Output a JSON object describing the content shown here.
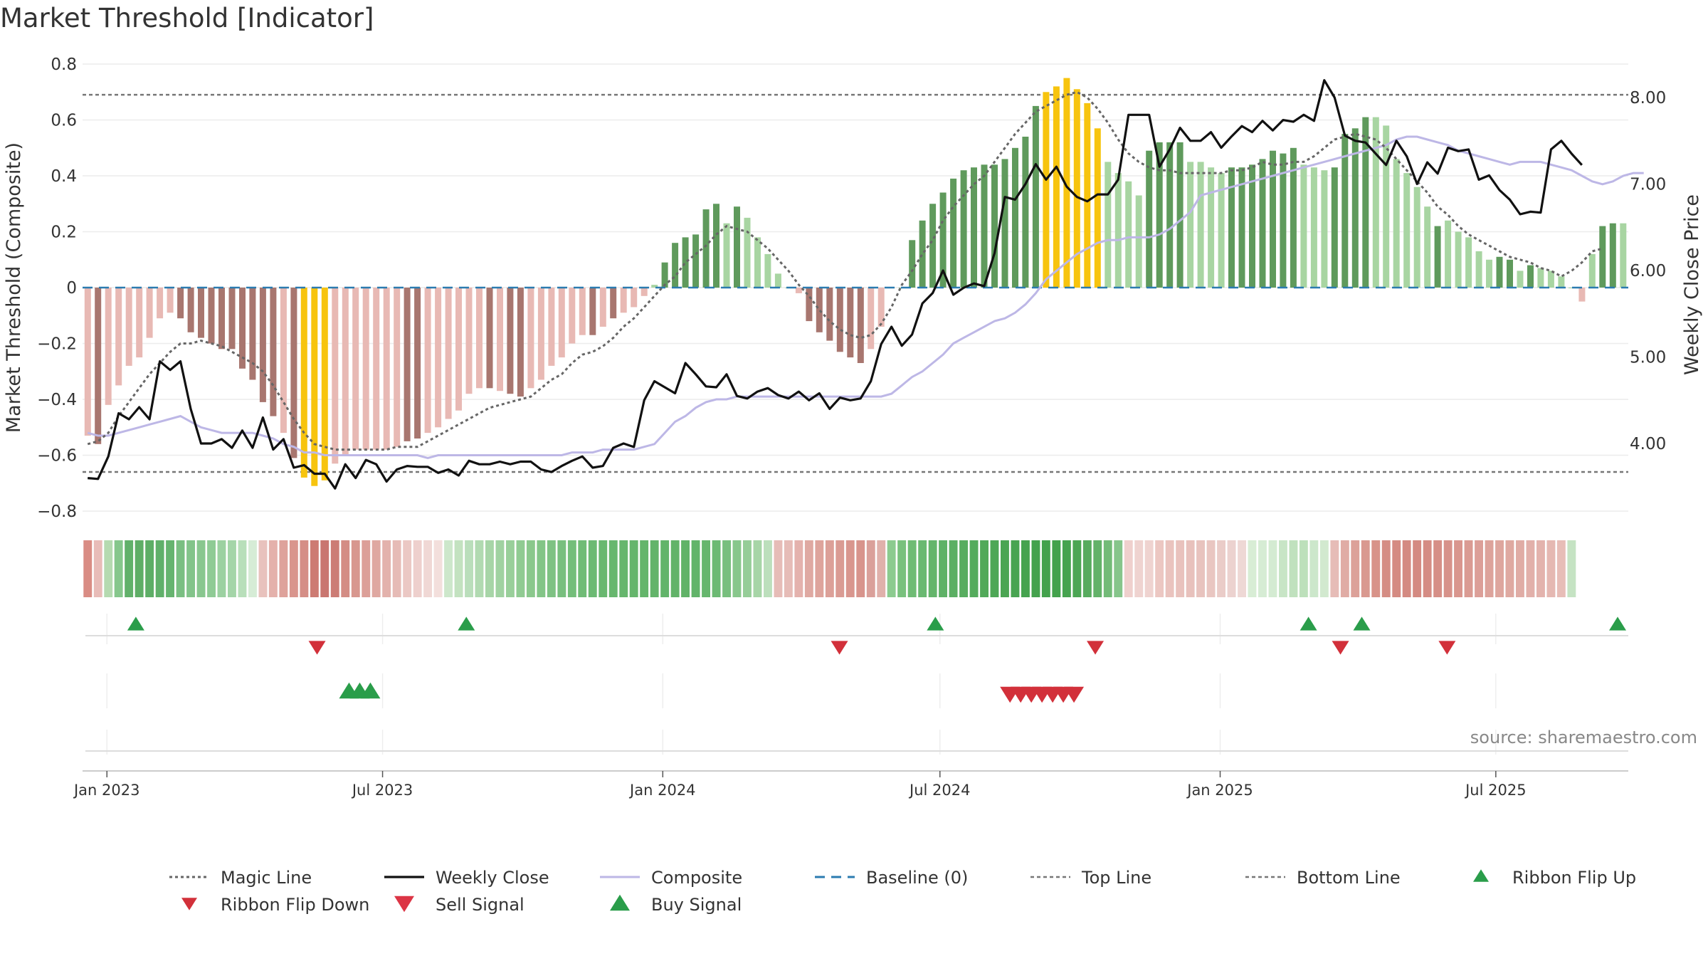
{
  "title": "Market Threshold [Indicator]",
  "source": "source: sharemaestro.com",
  "colors": {
    "neg_light": "#e8b9b4",
    "neg_dark": "#a8766f",
    "pos_light": "#a8d5a2",
    "pos_dark": "#5f9a5c",
    "yellow": "#f7c40e",
    "magic": "#666666",
    "close": "#111111",
    "composite": "#bdb7e6",
    "baseline": "#2b7bb0",
    "refline": "#777777",
    "signal_up": "#2a9d4a",
    "signal_down": "#d2303a"
  },
  "chart_data": {
    "type": "bar",
    "title": "Market Threshold [Indicator]",
    "ylabel": "Market Threshold (Composite)",
    "y2label": "Weekly Close Price",
    "ylim": [
      -0.8,
      0.8
    ],
    "y2lim": [
      3.2,
      8.4
    ],
    "yticks": [
      0.8,
      0.6,
      0.4,
      0.2,
      0,
      -0.2,
      -0.4,
      -0.6,
      -0.8
    ],
    "ytick_labels": [
      "0.8",
      "0.6",
      "0.4",
      "0.2",
      "0",
      "−0.2",
      "−0.4",
      "−0.6",
      "−0.8"
    ],
    "y2ticks": [
      8.0,
      7.0,
      6.0,
      5.0,
      4.0
    ],
    "y2tick_labels": [
      "8.00",
      "7.00",
      "6.00",
      "5.00",
      "4.00"
    ],
    "x_start": "2022-12-16",
    "x_end": "2025-09-26",
    "x_tick_labels": [
      "Jan 2023",
      "Jul 2023",
      "Jan 2024",
      "Jul 2024",
      "Jan 2025",
      "Jul 2025"
    ],
    "top_line": 0.69,
    "bottom_line": -0.66,
    "baseline": 0,
    "grid": true,
    "legend_position": "bottom",
    "bars_value": [
      -0.53,
      -0.56,
      -0.42,
      -0.35,
      -0.28,
      -0.25,
      -0.18,
      -0.11,
      -0.09,
      -0.11,
      -0.16,
      -0.18,
      -0.2,
      -0.22,
      -0.22,
      -0.29,
      -0.33,
      -0.41,
      -0.46,
      -0.52,
      -0.61,
      -0.68,
      -0.71,
      -0.69,
      -0.63,
      -0.6,
      -0.58,
      -0.58,
      -0.58,
      -0.58,
      -0.57,
      -0.55,
      -0.54,
      -0.52,
      -0.5,
      -0.47,
      -0.44,
      -0.38,
      -0.36,
      -0.36,
      -0.37,
      -0.38,
      -0.39,
      -0.36,
      -0.33,
      -0.28,
      -0.25,
      -0.2,
      -0.17,
      -0.17,
      -0.14,
      -0.11,
      -0.09,
      -0.07,
      -0.03,
      0.01,
      0.09,
      0.16,
      0.18,
      0.19,
      0.28,
      0.3,
      0.23,
      0.29,
      0.25,
      0.18,
      0.12,
      0.05,
      0,
      -0.02,
      -0.12,
      -0.16,
      -0.19,
      -0.23,
      -0.25,
      -0.27,
      -0.22,
      -0.14,
      0,
      0,
      0.17,
      0.24,
      0.3,
      0.34,
      0.39,
      0.42,
      0.43,
      0.44,
      0.44,
      0.46,
      0.5,
      0.54,
      0.65,
      0.7,
      0.72,
      0.75,
      0.71,
      0.66,
      0.57,
      0.45,
      0.41,
      0.38,
      0.33,
      0.49,
      0.52,
      0.52,
      0.52,
      0.45,
      0.45,
      0.43,
      0.41,
      0.43,
      0.43,
      0.44,
      0.46,
      0.49,
      0.48,
      0.5,
      0.44,
      0.43,
      0.42,
      0.43,
      0.55,
      0.57,
      0.61,
      0.61,
      0.58,
      0.46,
      0.41,
      0.36,
      0.29,
      0.22,
      0.24,
      0.2,
      0.18,
      0.13,
      0.1,
      0.11,
      0.1,
      0.06,
      0.08,
      0.07,
      0.06,
      0.04,
      0,
      -0.05,
      0.12,
      0.22,
      0.23,
      0.23
    ],
    "bars_class": [
      "neg_light",
      "neg_dark",
      "neg_light",
      "neg_light",
      "neg_light",
      "neg_light",
      "neg_light",
      "neg_light",
      "neg_light",
      "neg_dark",
      "neg_dark",
      "neg_dark",
      "neg_dark",
      "neg_dark",
      "neg_dark",
      "neg_dark",
      "neg_dark",
      "neg_dark",
      "neg_dark",
      "neg_light",
      "neg_dark",
      "yellow",
      "yellow",
      "yellow",
      "neg_light",
      "neg_light",
      "neg_light",
      "neg_light",
      "neg_light",
      "neg_light",
      "neg_light",
      "neg_dark",
      "neg_dark",
      "neg_light",
      "neg_light",
      "neg_light",
      "neg_light",
      "neg_light",
      "neg_light",
      "neg_dark",
      "neg_light",
      "neg_dark",
      "neg_dark",
      "neg_light",
      "neg_light",
      "neg_light",
      "neg_light",
      "neg_light",
      "neg_light",
      "neg_dark",
      "neg_light",
      "neg_dark",
      "neg_light",
      "neg_light",
      "neg_light",
      "pos_light",
      "pos_dark",
      "pos_dark",
      "pos_dark",
      "pos_dark",
      "pos_dark",
      "pos_dark",
      "pos_light",
      "pos_dark",
      "pos_light",
      "pos_light",
      "pos_light",
      "pos_light",
      "pos_light",
      "neg_light",
      "neg_dark",
      "neg_dark",
      "neg_dark",
      "neg_dark",
      "neg_dark",
      "neg_dark",
      "neg_light",
      "neg_light",
      "pos_light",
      "pos_light",
      "pos_dark",
      "pos_dark",
      "pos_dark",
      "pos_dark",
      "pos_dark",
      "pos_dark",
      "pos_dark",
      "pos_dark",
      "pos_dark",
      "pos_dark",
      "pos_dark",
      "pos_dark",
      "pos_dark",
      "yellow",
      "yellow",
      "yellow",
      "yellow",
      "yellow",
      "yellow",
      "pos_light",
      "pos_light",
      "pos_light",
      "pos_light",
      "pos_dark",
      "pos_dark",
      "pos_dark",
      "pos_dark",
      "pos_light",
      "pos_light",
      "pos_light",
      "pos_light",
      "pos_dark",
      "pos_dark",
      "pos_dark",
      "pos_dark",
      "pos_dark",
      "pos_dark",
      "pos_dark",
      "pos_light",
      "pos_light",
      "pos_light",
      "pos_dark",
      "pos_dark",
      "pos_dark",
      "pos_dark",
      "pos_light",
      "pos_light",
      "pos_light",
      "pos_light",
      "pos_light",
      "pos_light",
      "pos_dark",
      "pos_light",
      "pos_light",
      "pos_light",
      "pos_light",
      "pos_light",
      "pos_dark",
      "pos_dark",
      "pos_light",
      "pos_dark",
      "pos_light",
      "pos_light",
      "pos_light",
      "pos_light",
      "neg_light",
      "pos_light",
      "pos_dark",
      "pos_dark",
      "pos_light"
    ],
    "magic_line": [
      -0.56,
      -0.55,
      -0.52,
      -0.46,
      -0.41,
      -0.36,
      -0.31,
      -0.27,
      -0.23,
      -0.2,
      -0.2,
      -0.19,
      -0.2,
      -0.21,
      -0.23,
      -0.25,
      -0.27,
      -0.3,
      -0.35,
      -0.41,
      -0.47,
      -0.52,
      -0.56,
      -0.57,
      -0.58,
      -0.58,
      -0.58,
      -0.58,
      -0.58,
      -0.58,
      -0.57,
      -0.57,
      -0.57,
      -0.55,
      -0.53,
      -0.51,
      -0.49,
      -0.47,
      -0.45,
      -0.43,
      -0.42,
      -0.41,
      -0.4,
      -0.39,
      -0.36,
      -0.33,
      -0.31,
      -0.27,
      -0.24,
      -0.23,
      -0.21,
      -0.18,
      -0.14,
      -0.11,
      -0.07,
      -0.03,
      0.01,
      0.04,
      0.09,
      0.12,
      0.15,
      0.19,
      0.22,
      0.21,
      0.2,
      0.17,
      0.14,
      0.1,
      0.06,
      0.01,
      -0.03,
      -0.08,
      -0.12,
      -0.15,
      -0.17,
      -0.18,
      -0.17,
      -0.13,
      -0.07,
      0.01,
      0.06,
      0.12,
      0.17,
      0.24,
      0.29,
      0.33,
      0.37,
      0.4,
      0.45,
      0.5,
      0.55,
      0.59,
      0.63,
      0.65,
      0.67,
      0.69,
      0.7,
      0.68,
      0.64,
      0.59,
      0.53,
      0.48,
      0.45,
      0.43,
      0.42,
      0.42,
      0.41,
      0.41,
      0.41,
      0.41,
      0.41,
      0.42,
      0.42,
      0.43,
      0.45,
      0.44,
      0.44,
      0.45,
      0.45,
      0.47,
      0.5,
      0.53,
      0.54,
      0.55,
      0.54,
      0.53,
      0.5,
      0.46,
      0.42,
      0.38,
      0.34,
      0.29,
      0.26,
      0.22,
      0.19,
      0.17,
      0.15,
      0.13,
      0.11,
      0.1,
      0.09,
      0.07,
      0.06,
      0.04,
      0.06,
      0.09,
      0.13,
      0.14
    ],
    "composite": [
      -0.52,
      -0.53,
      -0.53,
      -0.52,
      -0.51,
      -0.5,
      -0.49,
      -0.48,
      -0.47,
      -0.46,
      -0.48,
      -0.5,
      -0.51,
      -0.52,
      -0.52,
      -0.52,
      -0.52,
      -0.53,
      -0.54,
      -0.56,
      -0.57,
      -0.59,
      -0.59,
      -0.6,
      -0.6,
      -0.6,
      -0.6,
      -0.6,
      -0.6,
      -0.6,
      -0.6,
      -0.6,
      -0.6,
      -0.61,
      -0.6,
      -0.6,
      -0.6,
      -0.6,
      -0.6,
      -0.6,
      -0.6,
      -0.6,
      -0.6,
      -0.6,
      -0.6,
      -0.6,
      -0.6,
      -0.59,
      -0.59,
      -0.59,
      -0.58,
      -0.58,
      -0.58,
      -0.58,
      -0.57,
      -0.56,
      -0.52,
      -0.48,
      -0.46,
      -0.43,
      -0.41,
      -0.4,
      -0.4,
      -0.39,
      -0.39,
      -0.39,
      -0.39,
      -0.39,
      -0.39,
      -0.39,
      -0.39,
      -0.39,
      -0.39,
      -0.39,
      -0.39,
      -0.39,
      -0.39,
      -0.39,
      -0.38,
      -0.35,
      -0.32,
      -0.3,
      -0.27,
      -0.24,
      -0.2,
      -0.18,
      -0.16,
      -0.14,
      -0.12,
      -0.11,
      -0.09,
      -0.06,
      -0.02,
      0.03,
      0.06,
      0.09,
      0.12,
      0.14,
      0.16,
      0.17,
      0.17,
      0.18,
      0.18,
      0.18,
      0.19,
      0.21,
      0.24,
      0.27,
      0.33,
      0.34,
      0.35,
      0.36,
      0.37,
      0.38,
      0.39,
      0.4,
      0.41,
      0.42,
      0.43,
      0.44,
      0.45,
      0.46,
      0.47,
      0.48,
      0.49,
      0.5,
      0.51,
      0.53,
      0.54,
      0.54,
      0.53,
      0.52,
      0.51,
      0.49,
      0.48,
      0.47,
      0.46,
      0.45,
      0.44,
      0.45,
      0.45,
      0.45,
      0.44,
      0.43,
      0.42,
      0.4,
      0.38,
      0.37,
      0.38,
      0.4,
      0.41,
      0.41
    ],
    "weekly_close": [
      3.6,
      3.59,
      3.85,
      4.35,
      4.28,
      4.42,
      4.28,
      4.95,
      4.85,
      4.95,
      4.4,
      4.0,
      4.0,
      4.05,
      3.95,
      4.15,
      3.95,
      4.3,
      3.93,
      4.05,
      3.72,
      3.75,
      3.65,
      3.65,
      3.48,
      3.76,
      3.6,
      3.81,
      3.76,
      3.56,
      3.7,
      3.74,
      3.73,
      3.73,
      3.66,
      3.7,
      3.63,
      3.8,
      3.76,
      3.76,
      3.79,
      3.76,
      3.79,
      3.79,
      3.7,
      3.67,
      3.74,
      3.8,
      3.85,
      3.72,
      3.74,
      3.95,
      4.0,
      3.96,
      4.5,
      4.72,
      4.65,
      4.58,
      4.93,
      4.8,
      4.66,
      4.65,
      4.8,
      4.55,
      4.52,
      4.6,
      4.64,
      4.56,
      4.52,
      4.6,
      4.5,
      4.58,
      4.4,
      4.53,
      4.5,
      4.52,
      4.72,
      5.15,
      5.35,
      5.13,
      5.26,
      5.62,
      5.74,
      6.0,
      5.72,
      5.8,
      5.85,
      5.82,
      6.2,
      6.85,
      6.82,
      7.0,
      7.23,
      7.05,
      7.2,
      6.97,
      6.85,
      6.8,
      6.88,
      6.88,
      7.05,
      7.8,
      7.8,
      7.8,
      7.2,
      7.4,
      7.65,
      7.5,
      7.5,
      7.6,
      7.42,
      7.55,
      7.67,
      7.6,
      7.73,
      7.62,
      7.74,
      7.72,
      7.8,
      7.73,
      8.2,
      8.0,
      7.56,
      7.5,
      7.48,
      7.35,
      7.22,
      7.5,
      7.32,
      7.0,
      7.25,
      7.12,
      7.42,
      7.38,
      7.4,
      7.05,
      7.1,
      6.93,
      6.82,
      6.65,
      6.68,
      6.67,
      7.4,
      7.5,
      7.35,
      7.22
    ],
    "ribbon_colors": [
      "#d98c84",
      "#e8bcb8",
      "#b5dab0",
      "#86c78c",
      "#61b16a",
      "#5eae66",
      "#5dae66",
      "#60b06a",
      "#66b46f",
      "#7abf82",
      "#83c48a",
      "#89c78f",
      "#8fcb95",
      "#9cd1a1",
      "#a4d5a8",
      "#b8dfba",
      "#d6ecd6",
      "#e8c2bd",
      "#e4b1ab",
      "#dea29b",
      "#d9958d",
      "#d58e86",
      "#cd7b73",
      "#c97670",
      "#cc7c75",
      "#d48d85",
      "#d8978f",
      "#dc9f98",
      "#dfa8a1",
      "#e3b2ac",
      "#e6bbb6",
      "#ebc8c4",
      "#eed0cd",
      "#f0d8d5",
      "#f3dfdc",
      "#cde7cb",
      "#c3e2c0",
      "#badebb",
      "#b1dab1",
      "#a7d5a7",
      "#a0d2a1",
      "#99cf9a",
      "#90cb92",
      "#8ac88c",
      "#83c587",
      "#7ec283",
      "#78bf7e",
      "#74be7a",
      "#70bc76",
      "#6cba73",
      "#69b870",
      "#67b76e",
      "#66b66d",
      "#65b56c",
      "#64b56b",
      "#63b46a",
      "#62b46a",
      "#62b369",
      "#61b368",
      "#62b46a",
      "#66b66d",
      "#6cba73",
      "#78bf7e",
      "#88c78c",
      "#96cd98",
      "#a7d5a7",
      "#bcdfbc",
      "#e6bcb7",
      "#e6bcb7",
      "#e4b2ad",
      "#dfa9a2",
      "#dea49c",
      "#dca098",
      "#da9b93",
      "#d9968e",
      "#d8948c",
      "#daa09a",
      "#e0b1ab",
      "#8ccb8f",
      "#79c17d",
      "#6fbc74",
      "#6ab971",
      "#64b56b",
      "#5fb267",
      "#5baf63",
      "#57ad5f",
      "#54ab5c",
      "#51a959",
      "#4ea756",
      "#4ba553",
      "#48a451",
      "#46a34f",
      "#44a24d",
      "#43a24c",
      "#43a24c",
      "#46a34f",
      "#4ca654",
      "#57ab5e",
      "#63b269",
      "#73bb78",
      "#86c58b",
      "#efd0cd",
      "#efd3d0",
      "#efd3d0",
      "#ecc7c2",
      "#eac3be",
      "#e9c2bd",
      "#e8c1bc",
      "#e8c3be",
      "#e9c6c1",
      "#eaccc8",
      "#ecd2cf",
      "#eed8d5",
      "#d8edd5",
      "#d6ecd4",
      "#d4ebd2",
      "#c8e5c6",
      "#c0e1be",
      "#bde0bb",
      "#cce7cb",
      "#d2e9cf",
      "#e6bcb7",
      "#e0aca5",
      "#dca199",
      "#d99990",
      "#d89389",
      "#d58d84",
      "#d58b82",
      "#d48a82",
      "#d48a82",
      "#d58c84",
      "#d68f87",
      "#d7928a",
      "#d9968e",
      "#da9b93",
      "#dc9f98",
      "#dda39b",
      "#dea69e",
      "#dfa9a1",
      "#e0aca5",
      "#e2b0aa",
      "#e3b3ad",
      "#e5b8b2",
      "#e7bdb7",
      "#c5e3c3"
    ],
    "ribbon_flip_up": [
      "2023-01-20",
      "2023-08-25",
      "2024-06-28",
      "2025-02-28",
      "2025-04-04",
      "2025-09-19"
    ],
    "ribbon_flip_down": [
      "2023-05-19",
      "2024-04-26",
      "2024-10-11",
      "2025-03-21",
      "2025-05-30"
    ],
    "buy_signals": [
      "2023-06-09",
      "2023-06-16",
      "2023-06-23"
    ],
    "sell_signals": [
      "2024-08-16",
      "2024-08-23",
      "2024-08-30",
      "2024-09-06",
      "2024-09-13",
      "2024-09-20",
      "2024-09-27"
    ]
  },
  "legend": [
    {
      "key": "magic",
      "label": "Magic Line",
      "type": "dotted"
    },
    {
      "key": "close",
      "label": "Weekly Close",
      "type": "solid"
    },
    {
      "key": "composite",
      "label": "Composite",
      "type": "solid-light"
    },
    {
      "key": "baseline",
      "label": "Baseline (0)",
      "type": "dashed"
    },
    {
      "key": "top",
      "label": "Top Line",
      "type": "fine-dotted"
    },
    {
      "key": "bottom",
      "label": "Bottom Line",
      "type": "fine-dotted"
    },
    {
      "key": "flipup",
      "label": "Ribbon Flip Up",
      "type": "tri-up-small"
    },
    {
      "key": "flipdown",
      "label": "Ribbon Flip Down",
      "type": "tri-down-small"
    },
    {
      "key": "sell",
      "label": "Sell Signal",
      "type": "tri-down-big"
    },
    {
      "key": "buy",
      "label": "Buy Signal",
      "type": "tri-up-big"
    }
  ]
}
